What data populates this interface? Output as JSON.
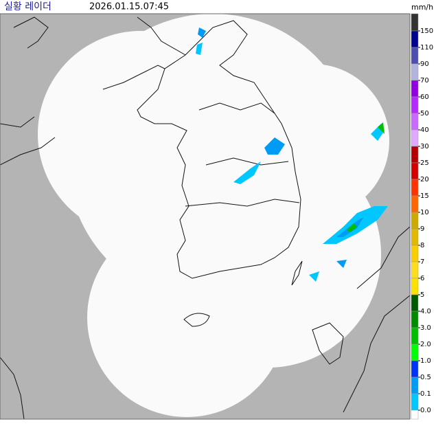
{
  "header": {
    "title": "실황 레이더",
    "timestamp": "2026.01.15.07:45"
  },
  "legend": {
    "unit": "mm/h",
    "labels": [
      "150",
      "110",
      "90",
      "70",
      "60",
      "50",
      "40",
      "30",
      "25",
      "20",
      "15",
      "10",
      "9",
      "8",
      "7",
      "6",
      "5",
      "4.0",
      "3.0",
      "2.0",
      "1.0",
      "0.5",
      "0.1",
      "0.0"
    ],
    "colors": [
      "#333333",
      "#000390",
      "#4c4eb1",
      "#b3b4de",
      "#9300e4",
      "#b329ff",
      "#c969ff",
      "#e0a9ff",
      "#b40000",
      "#d20000",
      "#ff3200",
      "#ff6600",
      "#ccaa00",
      "#e0b900",
      "#f9cd00",
      "#ffdc1f",
      "#ffe100",
      "#005a00",
      "#008c00",
      "#00be00",
      "#00ff00",
      "#0033f5",
      "#009bf5",
      "#00c8ff",
      "#ffffff"
    ]
  }
}
